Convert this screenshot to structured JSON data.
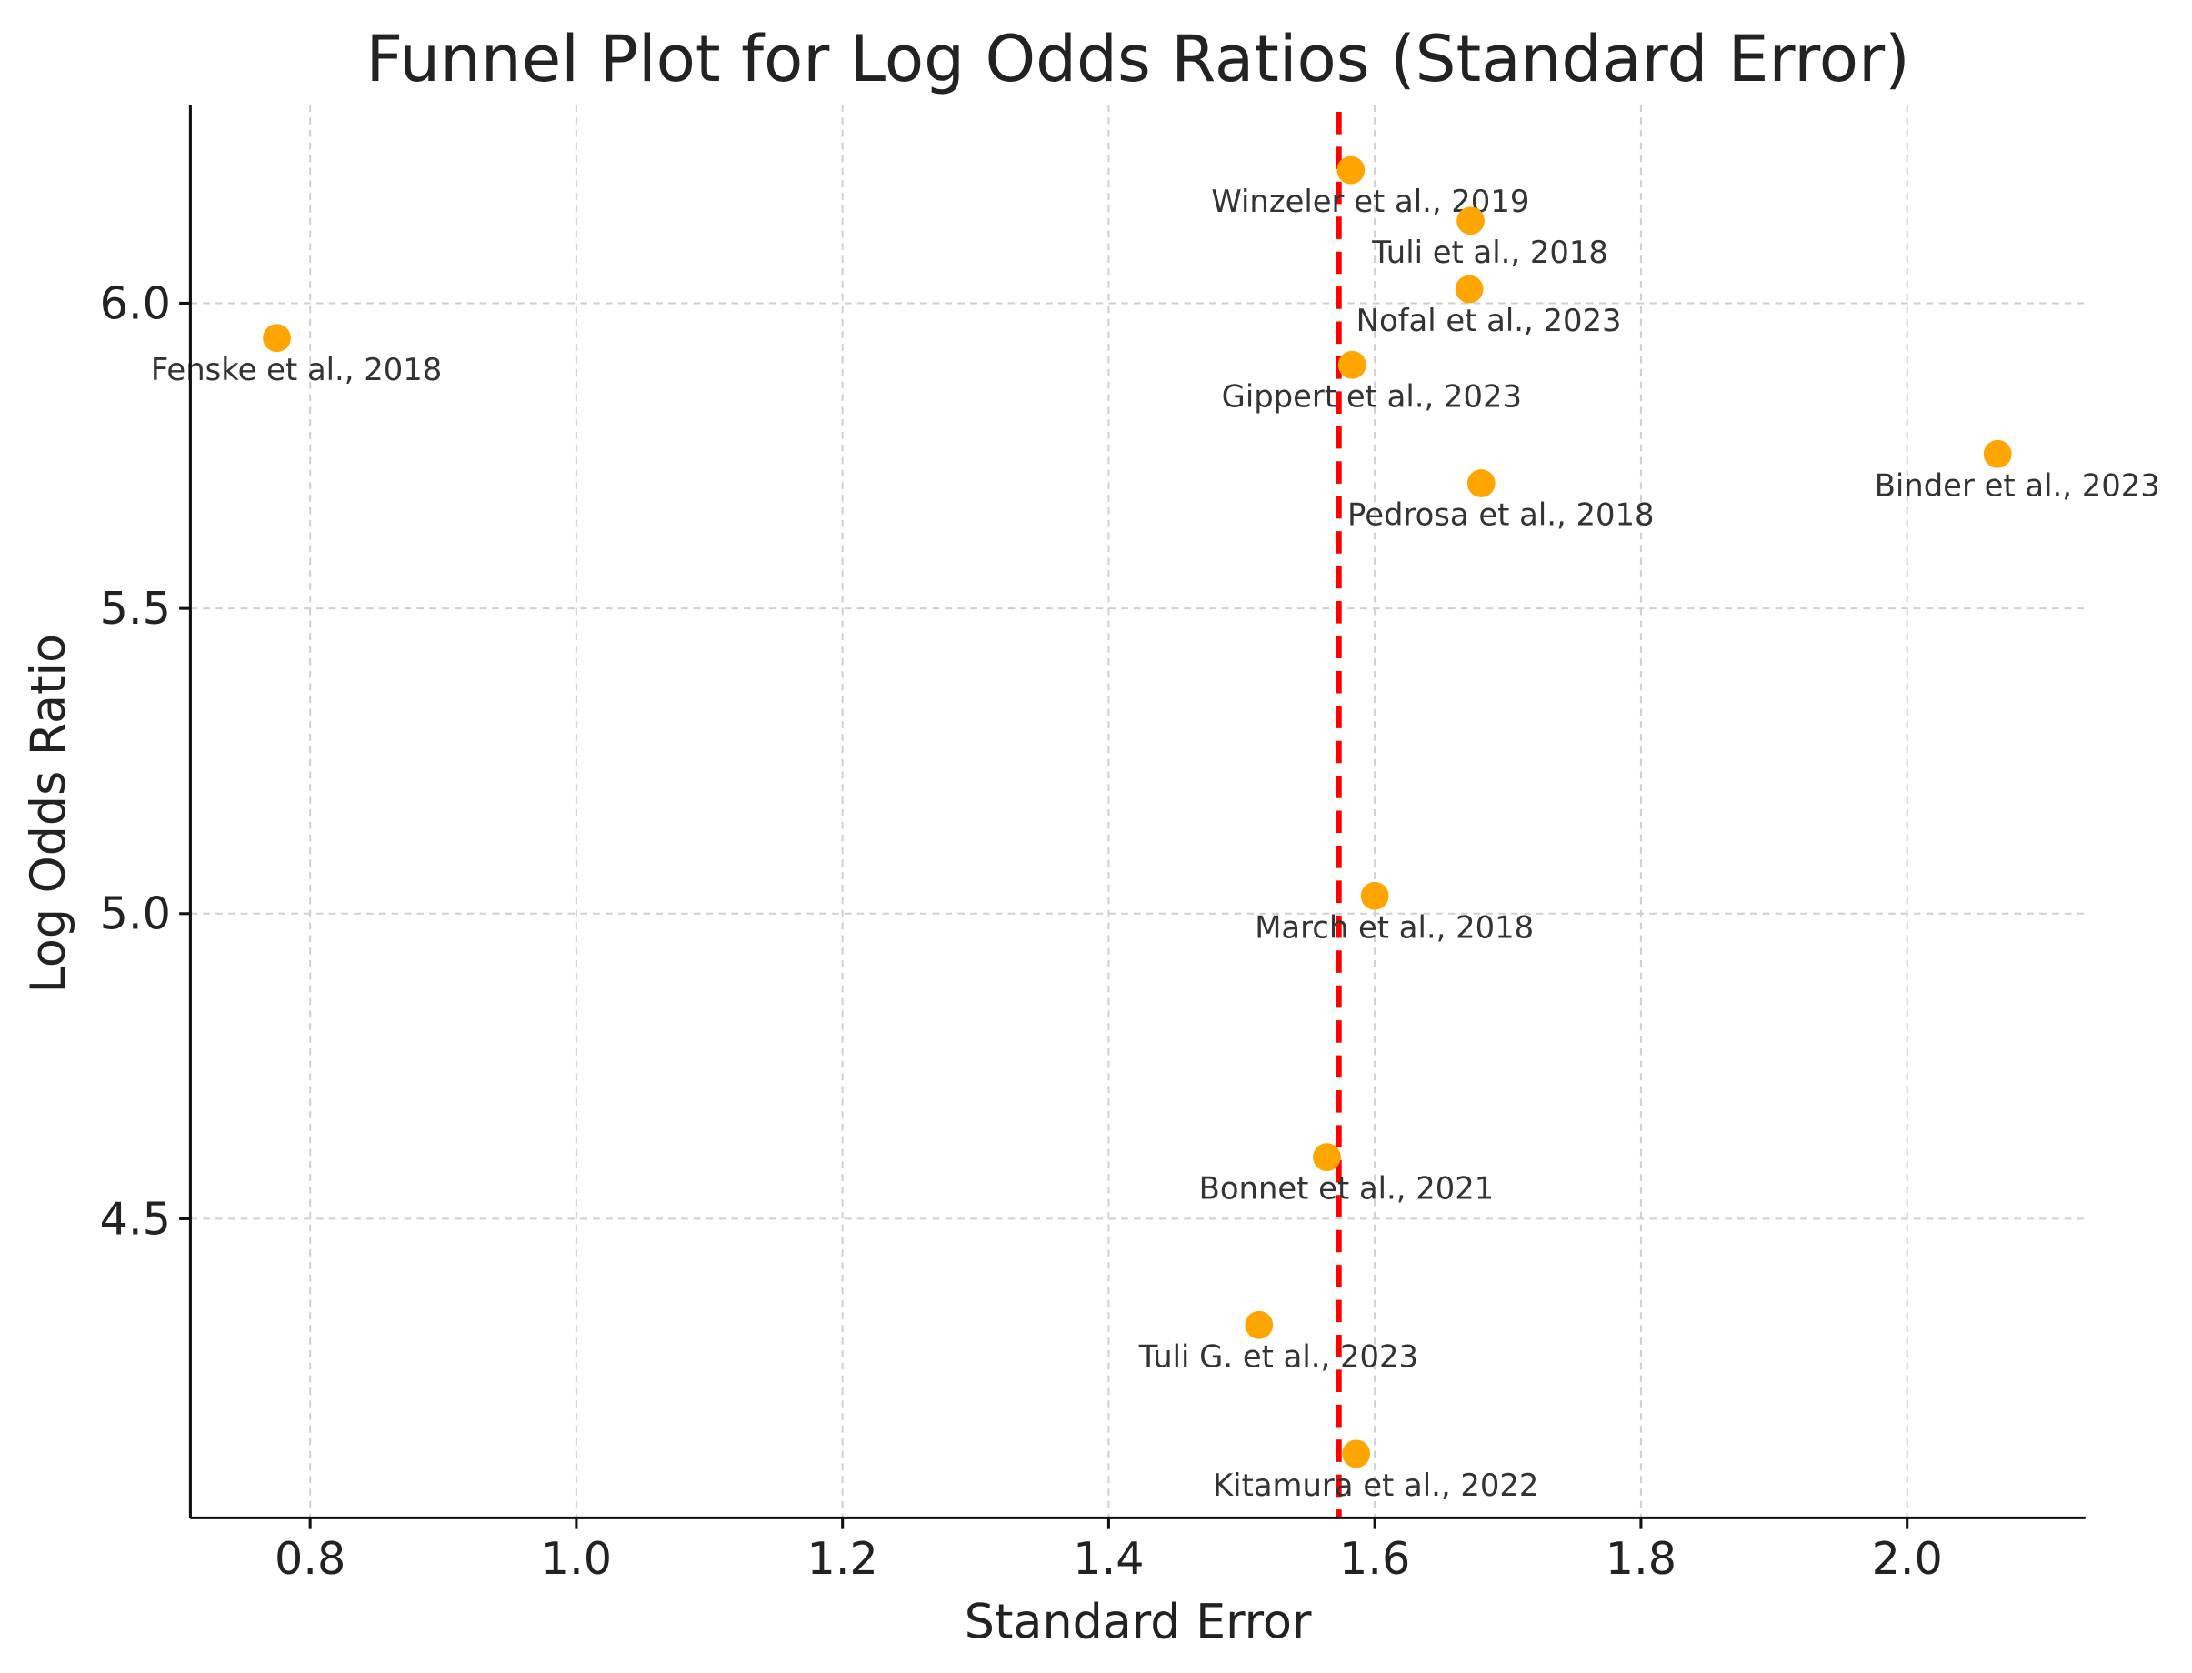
{
  "chart_data": {
    "type": "scatter",
    "title": "Funnel Plot for Log Odds Ratios (Standard Error)",
    "xlabel": "Standard Error",
    "ylabel": "Log Odds Ratio",
    "xlim": [
      0.71,
      2.134
    ],
    "ylim": [
      4.01,
      6.325
    ],
    "xticks": [
      0.8,
      1.0,
      1.2,
      1.4,
      1.6,
      1.8,
      2.0
    ],
    "xtick_labels": [
      "0.8",
      "1.0",
      "1.2",
      "1.4",
      "1.6",
      "1.8",
      "2.0"
    ],
    "yticks": [
      4.5,
      5.0,
      5.5,
      6.0
    ],
    "ytick_labels": [
      "4.5",
      "5.0",
      "5.5",
      "6.0"
    ],
    "grid": true,
    "point_color": "#FFA500",
    "reference_line": {
      "orientation": "vertical",
      "x": 1.573,
      "color": "#FF0000",
      "style": "dashed"
    },
    "points": [
      {
        "label": "Fenske et al., 2018",
        "x": 0.775,
        "y": 5.943
      },
      {
        "label": "Winzeler et al., 2019",
        "x": 1.582,
        "y": 6.218
      },
      {
        "label": "Tuli et al., 2018",
        "x": 1.672,
        "y": 6.135
      },
      {
        "label": "Nofal et al., 2023",
        "x": 1.671,
        "y": 6.023
      },
      {
        "label": "Gippert et al., 2023",
        "x": 1.583,
        "y": 5.899
      },
      {
        "label": "Pedrosa et al., 2018",
        "x": 1.68,
        "y": 5.705
      },
      {
        "label": "Binder et al., 2023",
        "x": 2.068,
        "y": 5.753
      },
      {
        "label": "March et al., 2018",
        "x": 1.6,
        "y": 5.029
      },
      {
        "label": "Bonnet et al., 2021",
        "x": 1.564,
        "y": 4.601
      },
      {
        "label": "Tuli G. et al., 2023",
        "x": 1.513,
        "y": 4.326
      },
      {
        "label": "Kitamura et al., 2022",
        "x": 1.586,
        "y": 4.115
      }
    ]
  }
}
